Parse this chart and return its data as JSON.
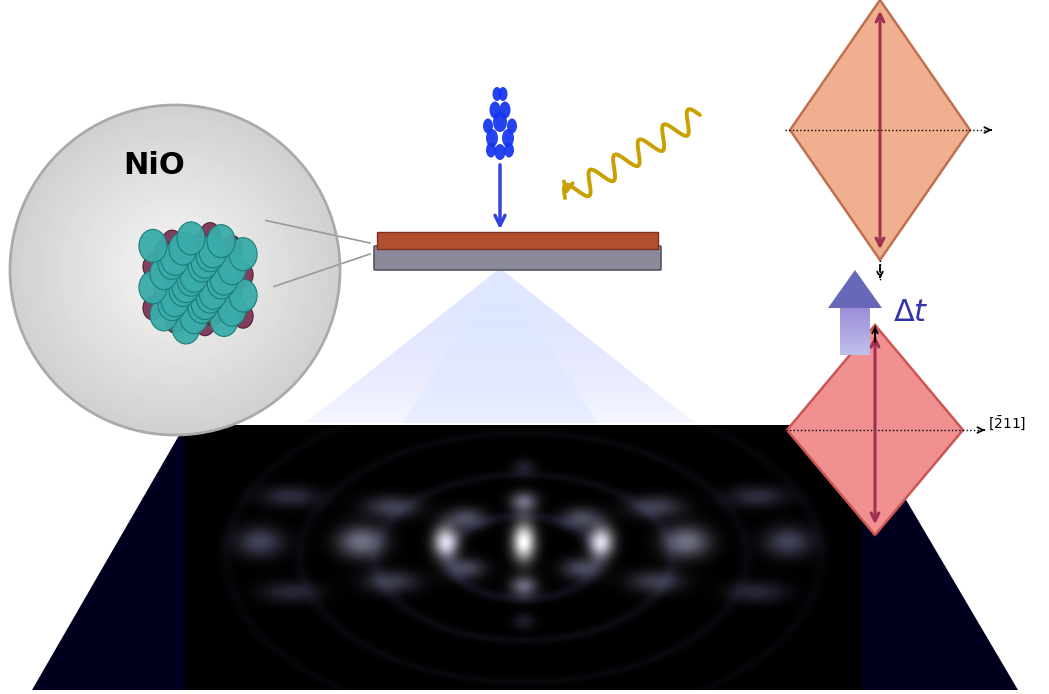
{
  "fig_width": 10.49,
  "fig_height": 6.94,
  "bg_color": "#ffffff",
  "teal_color": "#3aacaa",
  "dark_red_color": "#7b3050",
  "beam_color": "#4455ee",
  "laser_color": "#c8a000",
  "delta_t_color": "#3333aa",
  "diamond1_face": "#f0b090",
  "diamond1_edge": "#cc7755",
  "diamond2_face": "#f09090",
  "diamond2_edge": "#cc5555",
  "diffraction_bg": "#00001e",
  "sample_gray": "#8a8a9a",
  "sample_brown": "#b05030",
  "circle_fill": "#e5e5e5",
  "circle_edge": "#999999",
  "bond_color": "#666666",
  "arrow_dark_red": "#a03050"
}
